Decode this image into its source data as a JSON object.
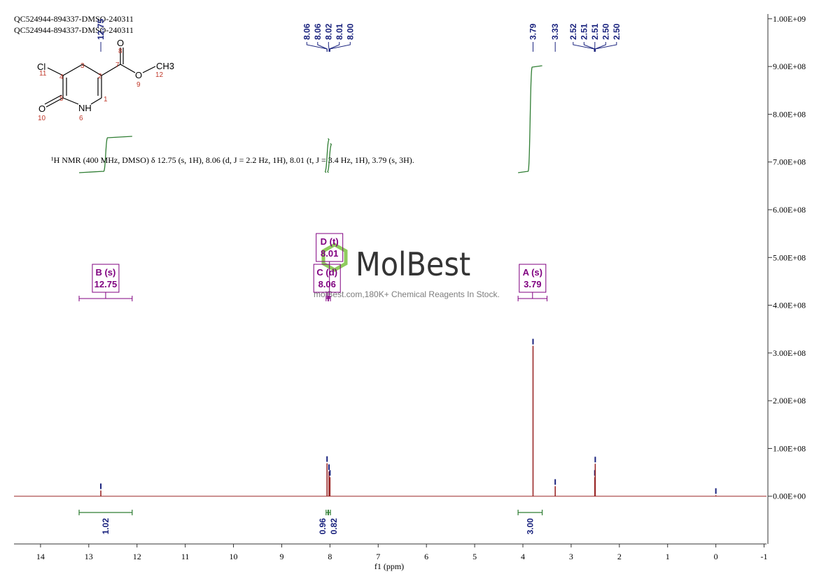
{
  "chart_data": {
    "type": "spectrum",
    "title_lines": [
      "QC524944-894337-DMSO-240311",
      "QC524944-894337-DMSO-240311"
    ],
    "x_label": "f1 (ppm)",
    "xlim": [
      14.55,
      -1.05
    ],
    "xticks": [
      14,
      13,
      12,
      11,
      10,
      9,
      8,
      7,
      6,
      5,
      4,
      3,
      2,
      1,
      0,
      -1
    ],
    "ylim": [
      -100000000,
      1010000000
    ],
    "yticks": [
      {
        "value": 0,
        "label": "0.00E+00"
      },
      {
        "value": 100000000,
        "label": "1.00E+08"
      },
      {
        "value": 200000000,
        "label": "2.00E+08"
      },
      {
        "value": 300000000,
        "label": "3.00E+08"
      },
      {
        "value": 400000000,
        "label": "4.00E+08"
      },
      {
        "value": 500000000,
        "label": "5.00E+08"
      },
      {
        "value": 600000000,
        "label": "6.00E+08"
      },
      {
        "value": 700000000,
        "label": "7.00E+08"
      },
      {
        "value": 800000000,
        "label": "8.00E+08"
      },
      {
        "value": 900000000,
        "label": "9.00E+08"
      },
      {
        "value": 1000000000,
        "label": "1.00E+09"
      }
    ],
    "color": "#9b2a2a",
    "peaks": {
      "x": [
        12.75,
        8.06,
        8.02,
        8.0,
        3.79,
        3.33,
        2.51,
        2.5,
        0
      ],
      "values": [
        12000000,
        69000000,
        52000000,
        40000000,
        315000000,
        21000000,
        40000000,
        68000000,
        2000000
      ]
    },
    "peak_labels": [
      12.75,
      8.06,
      8.06,
      8.02,
      8.01,
      {
        "value": 8,
        "label": "8.00"
      },
      3.79,
      3.33,
      2.52,
      2.51,
      2.51,
      {
        "value": 2.5,
        "label": "2.50"
      },
      {
        "value": 2.5,
        "label": "2.50"
      }
    ],
    "peak_label_color": "#1a237e",
    "description": "¹H NMR (400 MHz, DMSO) δ 12.75 (s, 1H), 8.06 (d, J = 2.2 Hz, 1H), 8.01 (t, J = 3.4 Hz, 1H), 3.79 (s, 3H).",
    "integrals": {
      "values": [
        1.02,
        0.96,
        0.82,
        3
      ],
      "value_labels": [
        "1.02",
        "0.96",
        "0.82",
        "3.00"
      ],
      "x_from": [
        13.2,
        8.08,
        8.03,
        4.1
      ],
      "x_to": [
        12.1,
        8.04,
        7.99,
        3.6
      ]
    },
    "integral_color": "#2e7d32",
    "multiplets": [
      {
        "name": "B (s)",
        "shift": 12.75,
        "x_from": 13.2,
        "x_to": 12.1
      },
      {
        "name": "C (d)",
        "shift": 8.06,
        "x_from": 8.08,
        "x_to": 8.04
      },
      {
        "name": "D (t)",
        "shift": 8.01,
        "x_from": 8.03,
        "x_to": 7.99
      },
      {
        "name": "A (s)",
        "shift": 3.79,
        "x_from": 4.1,
        "x_to": 3.5
      }
    ],
    "multiplet_color": "#800080"
  },
  "molecule": {
    "atoms": [
      "Cl",
      "O",
      "O",
      "CH3",
      "NH",
      "O"
    ],
    "numbers": [
      1,
      2,
      3,
      4,
      5,
      6,
      7,
      8,
      9,
      10,
      11,
      12
    ]
  },
  "watermark": {
    "brand": "MolBest",
    "tagline": "molBest.com,180K+ Chemical Reagents In Stock."
  }
}
